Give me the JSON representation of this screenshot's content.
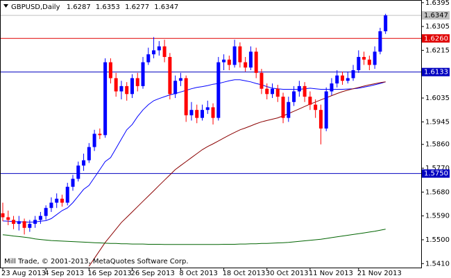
{
  "chart_data": {
    "type": "candlestick",
    "symbol": "GBPUSD,Daily",
    "footer": "Mill Trade, © 2001-2013, MetaQuotes Software Corp.",
    "bull_color": "#0000ff",
    "bear_color": "#ff0000",
    "ylim": [
      1.5395,
      1.6405
    ],
    "yticks": [
      1.6395,
      1.6305,
      1.6215,
      1.6035,
      1.5945,
      {
        "value": 1.586,
        "label": "1.5860"
      },
      {
        "value": 1.577,
        "label": "1.5770"
      },
      {
        "value": 1.568,
        "label": "1.5680"
      },
      {
        "value": 1.559,
        "label": "1.5590"
      },
      {
        "value": 1.55,
        "label": "1.5500"
      },
      {
        "value": 1.541,
        "label": "1.5410"
      }
    ],
    "levels": [
      {
        "value": 1.626,
        "label": "1.6260",
        "color": "#e00000"
      },
      {
        "value": 1.6133,
        "color": "#0000c0"
      },
      {
        "value": 1.575,
        "label": "1.5750",
        "color": "#0000c0"
      }
    ],
    "categories": [
      "23 Aug 2013",
      null,
      null,
      null,
      null,
      null,
      null,
      null,
      "4 Sep 2013",
      null,
      null,
      null,
      null,
      null,
      null,
      null,
      "16 Sep 2013",
      null,
      null,
      null,
      null,
      null,
      null,
      null,
      "26 Sep 2013",
      null,
      null,
      null,
      null,
      null,
      null,
      null,
      null,
      "8 Oct 2013",
      null,
      null,
      null,
      null,
      null,
      null,
      null,
      "18 Oct 2013",
      null,
      null,
      null,
      null,
      null,
      null,
      null,
      "30 Oct 2013",
      null,
      null,
      null,
      null,
      null,
      null,
      null,
      "11 Nov 2013",
      null,
      null,
      null,
      null,
      null,
      null,
      null,
      null,
      "21 Nov 2013",
      null,
      null,
      null,
      null,
      null
    ],
    "ohlc": [
      [
        1.56,
        1.564,
        1.557,
        1.5585
      ],
      [
        1.5585,
        1.561,
        1.5555,
        1.5575
      ],
      [
        1.5575,
        1.559,
        1.554,
        1.556
      ],
      [
        1.556,
        1.559,
        1.5535,
        1.557
      ],
      [
        1.557,
        1.558,
        1.552,
        1.5545
      ],
      [
        1.5545,
        1.5575,
        1.553,
        1.556
      ],
      [
        1.556,
        1.559,
        1.5545,
        1.5575
      ],
      [
        1.5575,
        1.5605,
        1.556,
        1.559
      ],
      [
        1.559,
        1.563,
        1.5575,
        1.562
      ],
      [
        1.562,
        1.566,
        1.5605,
        1.564
      ],
      [
        1.564,
        1.5675,
        1.562,
        1.5655
      ],
      [
        1.5655,
        1.567,
        1.5625,
        1.564
      ],
      [
        1.564,
        1.5715,
        1.563,
        1.57
      ],
      [
        1.57,
        1.5745,
        1.5685,
        1.573
      ],
      [
        1.573,
        1.5795,
        1.572,
        1.578
      ],
      [
        1.578,
        1.5825,
        1.576,
        1.58
      ],
      [
        1.58,
        1.5865,
        1.579,
        1.585
      ],
      [
        1.585,
        1.5915,
        1.5835,
        1.59
      ],
      [
        1.59,
        1.592,
        1.588,
        1.5895
      ],
      [
        1.5895,
        1.6185,
        1.5885,
        1.617
      ],
      [
        1.617,
        1.6185,
        1.609,
        1.611
      ],
      [
        1.611,
        1.613,
        1.604,
        1.606
      ],
      [
        1.606,
        1.61,
        1.603,
        1.608
      ],
      [
        1.608,
        1.6095,
        1.6025,
        1.605
      ],
      [
        1.605,
        1.6125,
        1.6035,
        1.611
      ],
      [
        1.611,
        1.613,
        1.606,
        1.608
      ],
      [
        1.608,
        1.619,
        1.607,
        1.617
      ],
      [
        1.617,
        1.6225,
        1.616,
        1.62
      ],
      [
        1.62,
        1.6265,
        1.6185,
        1.6215
      ],
      [
        1.6215,
        1.625,
        1.6195,
        1.623
      ],
      [
        1.623,
        1.6255,
        1.617,
        1.619
      ],
      [
        1.619,
        1.6205,
        1.603,
        1.605
      ],
      [
        1.605,
        1.612,
        1.6035,
        1.61
      ],
      [
        1.61,
        1.613,
        1.608,
        1.611
      ],
      [
        1.611,
        1.612,
        1.5945,
        1.597
      ],
      [
        1.597,
        1.602,
        1.595,
        1.599
      ],
      [
        1.599,
        1.601,
        1.594,
        1.596
      ],
      [
        1.596,
        1.601,
        1.595,
        1.599
      ],
      [
        1.599,
        1.6025,
        1.5975,
        1.6
      ],
      [
        1.6,
        1.6015,
        1.5935,
        1.596
      ],
      [
        1.596,
        1.619,
        1.595,
        1.617
      ],
      [
        1.617,
        1.62,
        1.614,
        1.618
      ],
      [
        1.618,
        1.6195,
        1.614,
        1.616
      ],
      [
        1.616,
        1.6255,
        1.615,
        1.623
      ],
      [
        1.623,
        1.6245,
        1.615,
        1.617
      ],
      [
        1.617,
        1.619,
        1.6135,
        1.615
      ],
      [
        1.615,
        1.623,
        1.614,
        1.621
      ],
      [
        1.621,
        1.6225,
        1.611,
        1.613
      ],
      [
        1.613,
        1.6145,
        1.605,
        1.607
      ],
      [
        1.607,
        1.609,
        1.603,
        1.605
      ],
      [
        1.605,
        1.609,
        1.6035,
        1.607
      ],
      [
        1.607,
        1.6085,
        1.602,
        1.604
      ],
      [
        1.604,
        1.6055,
        1.594,
        1.596
      ],
      [
        1.596,
        1.604,
        1.5945,
        1.602
      ],
      [
        1.602,
        1.608,
        1.6005,
        1.606
      ],
      [
        1.606,
        1.61,
        1.604,
        1.608
      ],
      [
        1.608,
        1.6095,
        1.602,
        1.604
      ],
      [
        1.604,
        1.606,
        1.599,
        1.601
      ],
      [
        1.601,
        1.603,
        1.596,
        1.599
      ],
      [
        1.599,
        1.601,
        1.586,
        1.592
      ],
      [
        1.592,
        1.6075,
        1.591,
        1.606
      ],
      [
        1.606,
        1.611,
        1.6045,
        1.609
      ],
      [
        1.609,
        1.614,
        1.6075,
        1.612
      ],
      [
        1.612,
        1.6135,
        1.6085,
        1.61
      ],
      [
        1.61,
        1.6135,
        1.609,
        1.611
      ],
      [
        1.611,
        1.616,
        1.61,
        1.614
      ],
      [
        1.614,
        1.6215,
        1.613,
        1.619
      ],
      [
        1.619,
        1.621,
        1.616,
        1.618
      ],
      [
        1.618,
        1.6195,
        1.614,
        1.616
      ],
      [
        1.616,
        1.623,
        1.6145,
        1.621
      ],
      [
        1.621,
        1.63,
        1.62,
        1.6287
      ],
      [
        1.6287,
        1.6353,
        1.6277,
        1.6347
      ]
    ],
    "series": [
      {
        "color": "#0000ff",
        "values": [
          1.5571,
          1.557,
          1.5569,
          1.5568,
          1.5567,
          1.5566,
          1.5567,
          1.557,
          1.5572,
          1.558,
          1.5595,
          1.561,
          1.562,
          1.564,
          1.5665,
          1.569,
          1.5705,
          1.5735,
          1.5765,
          1.5795,
          1.581,
          1.5845,
          1.588,
          1.5915,
          1.5935,
          1.5965,
          1.599,
          1.601,
          1.6025,
          1.6033,
          1.604,
          1.6047,
          1.6052,
          1.6058,
          1.6064,
          1.607,
          1.6075,
          1.6078,
          1.6082,
          1.6087,
          1.609,
          1.6095,
          1.61,
          1.6104,
          1.6104,
          1.61,
          1.6096,
          1.609,
          1.6085,
          1.6078,
          1.6072,
          1.607,
          1.6068,
          1.6068,
          1.6068,
          1.6068,
          1.607,
          1.6072,
          1.607,
          1.6068,
          1.6068,
          1.6068,
          1.6068,
          1.6068,
          1.6069,
          1.607,
          1.6072,
          1.6076,
          1.608,
          1.6085,
          1.609,
          1.6096
        ]
      },
      {
        "color": "#8b0000",
        "values": [
          null,
          null,
          null,
          null,
          null,
          null,
          null,
          null,
          null,
          null,
          null,
          null,
          null,
          null,
          null,
          null,
          1.54,
          1.543,
          1.546,
          1.549,
          1.5515,
          1.554,
          1.5565,
          1.5585,
          1.5605,
          1.5625,
          1.5645,
          1.5665,
          1.5685,
          1.5705,
          1.5725,
          1.5745,
          1.5765,
          1.578,
          1.5795,
          1.581,
          1.5825,
          1.584,
          1.5852,
          1.5862,
          1.5873,
          1.5884,
          1.5895,
          1.5905,
          1.5915,
          1.5922,
          1.593,
          1.5938,
          1.5945,
          1.595,
          1.5955,
          1.596,
          1.5968,
          1.5976,
          1.5985,
          1.5994,
          1.6003,
          1.6012,
          1.602,
          1.6028,
          1.6036,
          1.6044,
          1.6052,
          1.6059,
          1.6065,
          1.607,
          1.6075,
          1.608,
          1.6085,
          1.6089,
          1.6093,
          1.6096
        ]
      },
      {
        "color": "#006400",
        "values": [
          1.5519,
          1.5517,
          1.5514,
          1.5512,
          1.551,
          1.5507,
          1.5503,
          1.5501,
          1.5499,
          1.5497,
          1.5496,
          1.5495,
          1.5494,
          1.5493,
          1.5492,
          1.5491,
          1.549,
          1.5489,
          1.5488,
          1.5487,
          1.5486,
          1.5486,
          1.5485,
          1.5485,
          1.5484,
          1.5484,
          1.5484,
          1.5483,
          1.5483,
          1.5483,
          1.5482,
          1.5482,
          1.5482,
          1.5482,
          1.5482,
          1.5482,
          1.5482,
          1.5482,
          1.5482,
          1.5482,
          1.5482,
          1.5483,
          1.5483,
          1.5483,
          1.5484,
          1.5484,
          1.5485,
          1.5485,
          1.5486,
          1.5486,
          1.5487,
          1.5488,
          1.5489,
          1.549,
          1.5492,
          1.5494,
          1.5496,
          1.5498,
          1.55,
          1.5502,
          1.5505,
          1.5508,
          1.5511,
          1.5514,
          1.5517,
          1.552,
          1.5523,
          1.5526,
          1.5529,
          1.5532,
          1.5536,
          1.554
        ]
      }
    ]
  }
}
